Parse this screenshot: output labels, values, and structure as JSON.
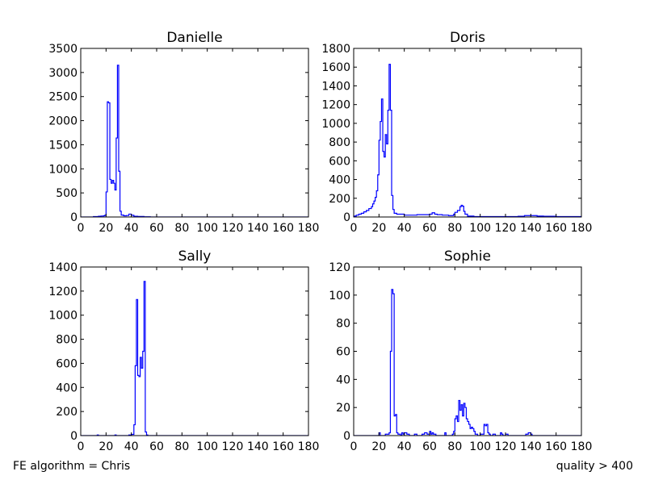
{
  "footer": {
    "left": "FE algorithm = Chris",
    "right": "quality > 400"
  },
  "chart_data": [
    {
      "type": "histogram",
      "title": "Danielle",
      "xlim": [
        0,
        180
      ],
      "ylim": [
        0,
        3500
      ],
      "xticks": [
        0,
        20,
        40,
        60,
        80,
        100,
        120,
        140,
        160,
        180
      ],
      "yticks": [
        0,
        500,
        1000,
        1500,
        2000,
        2500,
        3000,
        3500
      ],
      "color": "#0000ff",
      "bin_width": 1,
      "points": [
        [
          0,
          0
        ],
        [
          5,
          0
        ],
        [
          10,
          8
        ],
        [
          14,
          15
        ],
        [
          16,
          20
        ],
        [
          18,
          25
        ],
        [
          19,
          35
        ],
        [
          20,
          520
        ],
        [
          21,
          2390
        ],
        [
          22,
          2370
        ],
        [
          23,
          780
        ],
        [
          24,
          700
        ],
        [
          25,
          760
        ],
        [
          26,
          700
        ],
        [
          27,
          560
        ],
        [
          28,
          1640
        ],
        [
          29,
          3150
        ],
        [
          30,
          950
        ],
        [
          31,
          120
        ],
        [
          32,
          40
        ],
        [
          34,
          25
        ],
        [
          36,
          30
        ],
        [
          38,
          60
        ],
        [
          40,
          35
        ],
        [
          42,
          15
        ],
        [
          45,
          10
        ],
        [
          50,
          5
        ],
        [
          55,
          0
        ],
        [
          180,
          0
        ]
      ]
    },
    {
      "type": "histogram",
      "title": "Doris",
      "xlim": [
        0,
        180
      ],
      "ylim": [
        0,
        1800
      ],
      "xticks": [
        0,
        20,
        40,
        60,
        80,
        100,
        120,
        140,
        160,
        180
      ],
      "yticks": [
        0,
        200,
        400,
        600,
        800,
        1000,
        1200,
        1400,
        1600,
        1800
      ],
      "color": "#0000ff",
      "bin_width": 1,
      "points": [
        [
          0,
          10
        ],
        [
          2,
          20
        ],
        [
          4,
          30
        ],
        [
          6,
          40
        ],
        [
          8,
          55
        ],
        [
          10,
          70
        ],
        [
          12,
          90
        ],
        [
          14,
          110
        ],
        [
          15,
          140
        ],
        [
          16,
          170
        ],
        [
          17,
          210
        ],
        [
          18,
          280
        ],
        [
          19,
          450
        ],
        [
          20,
          820
        ],
        [
          21,
          1020
        ],
        [
          22,
          1260
        ],
        [
          23,
          700
        ],
        [
          24,
          640
        ],
        [
          25,
          880
        ],
        [
          26,
          780
        ],
        [
          27,
          1140
        ],
        [
          28,
          1630
        ],
        [
          29,
          1140
        ],
        [
          30,
          230
        ],
        [
          31,
          80
        ],
        [
          32,
          40
        ],
        [
          34,
          30
        ],
        [
          40,
          20
        ],
        [
          50,
          25
        ],
        [
          60,
          30
        ],
        [
          62,
          45
        ],
        [
          64,
          30
        ],
        [
          66,
          25
        ],
        [
          70,
          20
        ],
        [
          75,
          15
        ],
        [
          79,
          30
        ],
        [
          80,
          50
        ],
        [
          82,
          70
        ],
        [
          84,
          110
        ],
        [
          85,
          125
        ],
        [
          86,
          115
        ],
        [
          87,
          60
        ],
        [
          88,
          30
        ],
        [
          90,
          10
        ],
        [
          95,
          5
        ],
        [
          100,
          5
        ],
        [
          110,
          5
        ],
        [
          120,
          5
        ],
        [
          130,
          8
        ],
        [
          135,
          15
        ],
        [
          140,
          15
        ],
        [
          145,
          10
        ],
        [
          150,
          8
        ],
        [
          160,
          5
        ],
        [
          170,
          5
        ],
        [
          180,
          0
        ]
      ]
    },
    {
      "type": "histogram",
      "title": "Sally",
      "xlim": [
        0,
        180
      ],
      "ylim": [
        0,
        1400
      ],
      "xticks": [
        0,
        20,
        40,
        60,
        80,
        100,
        120,
        140,
        160,
        180
      ],
      "yticks": [
        0,
        200,
        400,
        600,
        800,
        1000,
        1200,
        1400
      ],
      "color": "#0000ff",
      "bin_width": 1,
      "points": [
        [
          0,
          0
        ],
        [
          13,
          5
        ],
        [
          14,
          0
        ],
        [
          27,
          5
        ],
        [
          28,
          0
        ],
        [
          38,
          5
        ],
        [
          40,
          10
        ],
        [
          42,
          90
        ],
        [
          43,
          580
        ],
        [
          44,
          1130
        ],
        [
          45,
          500
        ],
        [
          46,
          490
        ],
        [
          47,
          650
        ],
        [
          48,
          560
        ],
        [
          49,
          700
        ],
        [
          50,
          1280
        ],
        [
          51,
          30
        ],
        [
          52,
          5
        ],
        [
          53,
          0
        ],
        [
          180,
          0
        ]
      ]
    },
    {
      "type": "histogram",
      "title": "Sophie",
      "xlim": [
        0,
        180
      ],
      "ylim": [
        0,
        120
      ],
      "xticks": [
        0,
        20,
        40,
        60,
        80,
        100,
        120,
        140,
        160,
        180
      ],
      "yticks": [
        0,
        20,
        40,
        60,
        80,
        100,
        120
      ],
      "color": "#0000ff",
      "bin_width": 1,
      "points": [
        [
          0,
          0
        ],
        [
          20,
          2
        ],
        [
          21,
          0
        ],
        [
          25,
          1
        ],
        [
          27,
          1
        ],
        [
          28,
          2
        ],
        [
          29,
          60
        ],
        [
          30,
          104
        ],
        [
          31,
          101
        ],
        [
          32,
          14
        ],
        [
          33,
          15
        ],
        [
          34,
          2
        ],
        [
          35,
          1
        ],
        [
          37,
          0
        ],
        [
          38,
          2
        ],
        [
          39,
          1
        ],
        [
          40,
          2
        ],
        [
          42,
          1
        ],
        [
          44,
          0
        ],
        [
          48,
          1
        ],
        [
          50,
          0
        ],
        [
          54,
          1
        ],
        [
          56,
          2
        ],
        [
          58,
          1
        ],
        [
          60,
          3
        ],
        [
          61,
          1
        ],
        [
          62,
          2
        ],
        [
          63,
          1
        ],
        [
          65,
          0
        ],
        [
          70,
          0
        ],
        [
          72,
          2
        ],
        [
          73,
          0
        ],
        [
          78,
          1
        ],
        [
          79,
          3
        ],
        [
          80,
          12
        ],
        [
          81,
          14
        ],
        [
          82,
          10
        ],
        [
          83,
          25
        ],
        [
          84,
          18
        ],
        [
          85,
          22
        ],
        [
          86,
          14
        ],
        [
          87,
          23
        ],
        [
          88,
          20
        ],
        [
          89,
          12
        ],
        [
          90,
          10
        ],
        [
          91,
          8
        ],
        [
          92,
          5
        ],
        [
          93,
          6
        ],
        [
          94,
          5
        ],
        [
          95,
          3
        ],
        [
          96,
          1
        ],
        [
          98,
          0
        ],
        [
          100,
          1
        ],
        [
          102,
          1
        ],
        [
          103,
          8
        ],
        [
          104,
          7
        ],
        [
          105,
          8
        ],
        [
          106,
          2
        ],
        [
          107,
          1
        ],
        [
          108,
          0
        ],
        [
          110,
          1
        ],
        [
          112,
          0
        ],
        [
          116,
          2
        ],
        [
          117,
          1
        ],
        [
          118,
          0
        ],
        [
          120,
          1
        ],
        [
          122,
          0
        ],
        [
          130,
          0
        ],
        [
          136,
          1
        ],
        [
          138,
          2
        ],
        [
          140,
          1
        ],
        [
          141,
          0
        ],
        [
          180,
          0
        ]
      ]
    }
  ]
}
